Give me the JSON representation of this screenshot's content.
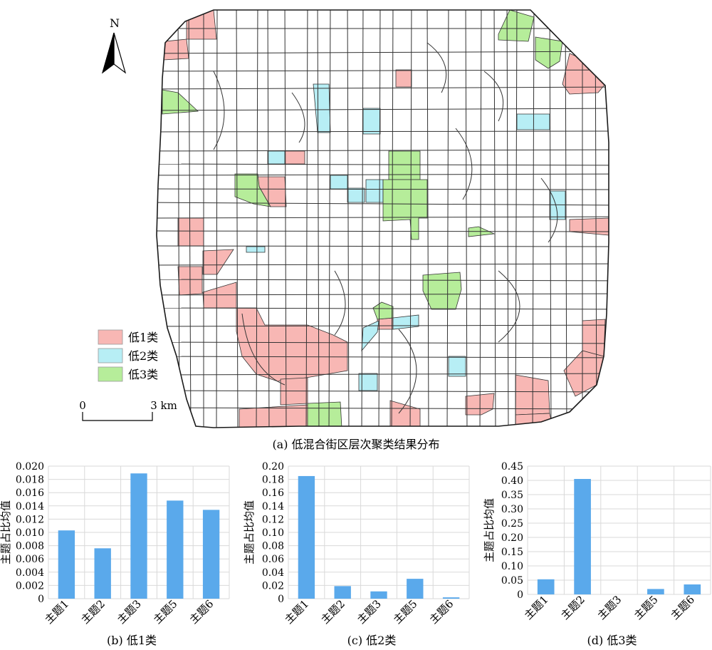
{
  "map": {
    "north_label": "N",
    "scale": {
      "start_label": "0",
      "end_label": "3 km"
    },
    "caption": "(a) 低混合街区层次聚类结果分布",
    "legend": [
      {
        "label": "低1类",
        "color": "#f8b7b4"
      },
      {
        "label": "低2类",
        "color": "#b7eef5"
      },
      {
        "label": "低3类",
        "color": "#b6ed9a"
      }
    ],
    "colors": {
      "boundary": "#1a1a1a",
      "road": "#333333"
    }
  },
  "chart_data": [
    {
      "type": "bar",
      "caption": "(b) 低1类",
      "ylabel": "主题占比均值",
      "categories": [
        "主题1",
        "主题2",
        "主题3",
        "主题5",
        "主题6"
      ],
      "values": [
        0.0103,
        0.0076,
        0.0189,
        0.0148,
        0.0134
      ],
      "yticks": [
        "0",
        "0.002",
        "0.004",
        "0.006",
        "0.008",
        "0.010",
        "0.012",
        "0.014",
        "0.016",
        "0.018",
        "0.020"
      ],
      "ylim": [
        0,
        0.02
      ],
      "grid": true,
      "bar_color": "#5aa9eb"
    },
    {
      "type": "bar",
      "caption": "(c) 低2类",
      "ylabel": "主题占比均值",
      "categories": [
        "主题1",
        "主题2",
        "主题3",
        "主题5",
        "主题6"
      ],
      "values": [
        0.185,
        0.019,
        0.011,
        0.03,
        0.002
      ],
      "yticks": [
        "0",
        "0.02",
        "0.04",
        "0.06",
        "0.08",
        "0.10",
        "0.12",
        "0.14",
        "0.16",
        "0.18",
        "0.20"
      ],
      "ylim": [
        0,
        0.2
      ],
      "grid": true,
      "bar_color": "#5aa9eb"
    },
    {
      "type": "bar",
      "caption": "(d) 低3类",
      "ylabel": "主题占比均值",
      "categories": [
        "主题1",
        "主题2",
        "主题3",
        "主题5",
        "主题6"
      ],
      "values": [
        0.053,
        0.405,
        0,
        0.019,
        0.035
      ],
      "yticks": [
        "0",
        "0.05",
        "0.10",
        "0.15",
        "0.20",
        "0.25",
        "0.30",
        "0.35",
        "0.40",
        "0.45"
      ],
      "ylim": [
        0,
        0.45
      ],
      "grid": true,
      "bar_color": "#5aa9eb"
    }
  ]
}
